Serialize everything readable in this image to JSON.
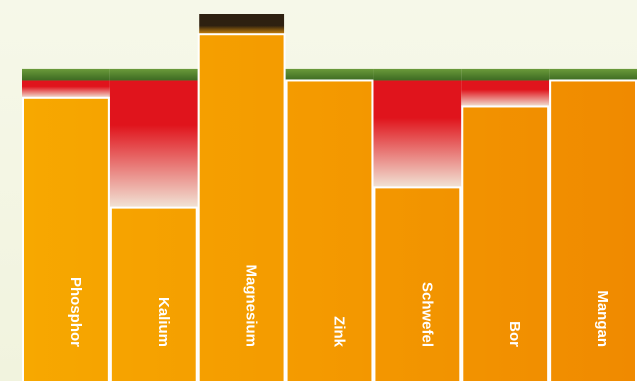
{
  "chart_data": {
    "type": "bar",
    "categories": [
      "Phosphor",
      "Kalium",
      "Magnesium",
      "Zink",
      "Schwefel",
      "Bor",
      "Mangan"
    ],
    "values": [
      98,
      60,
      120,
      104,
      67,
      95,
      104
    ],
    "reference_levels": {
      "deficit_threshold": 104,
      "band_top": 108,
      "magnesium_excess_top": 127
    },
    "ylim": [
      0,
      127
    ],
    "title": "",
    "xlabel": "",
    "ylabel": "",
    "grid": false,
    "legend": "none"
  },
  "colors": {
    "bar_left": "#f7a800",
    "bar_right": "#f08a00",
    "deficit_red": "#e0141c",
    "band_green_top": "#6a9a3a",
    "band_green_bottom": "#3d6a22",
    "excess_dark": "#2e2010",
    "excess_orange": "#e3920a",
    "separator": "#ffffff"
  }
}
